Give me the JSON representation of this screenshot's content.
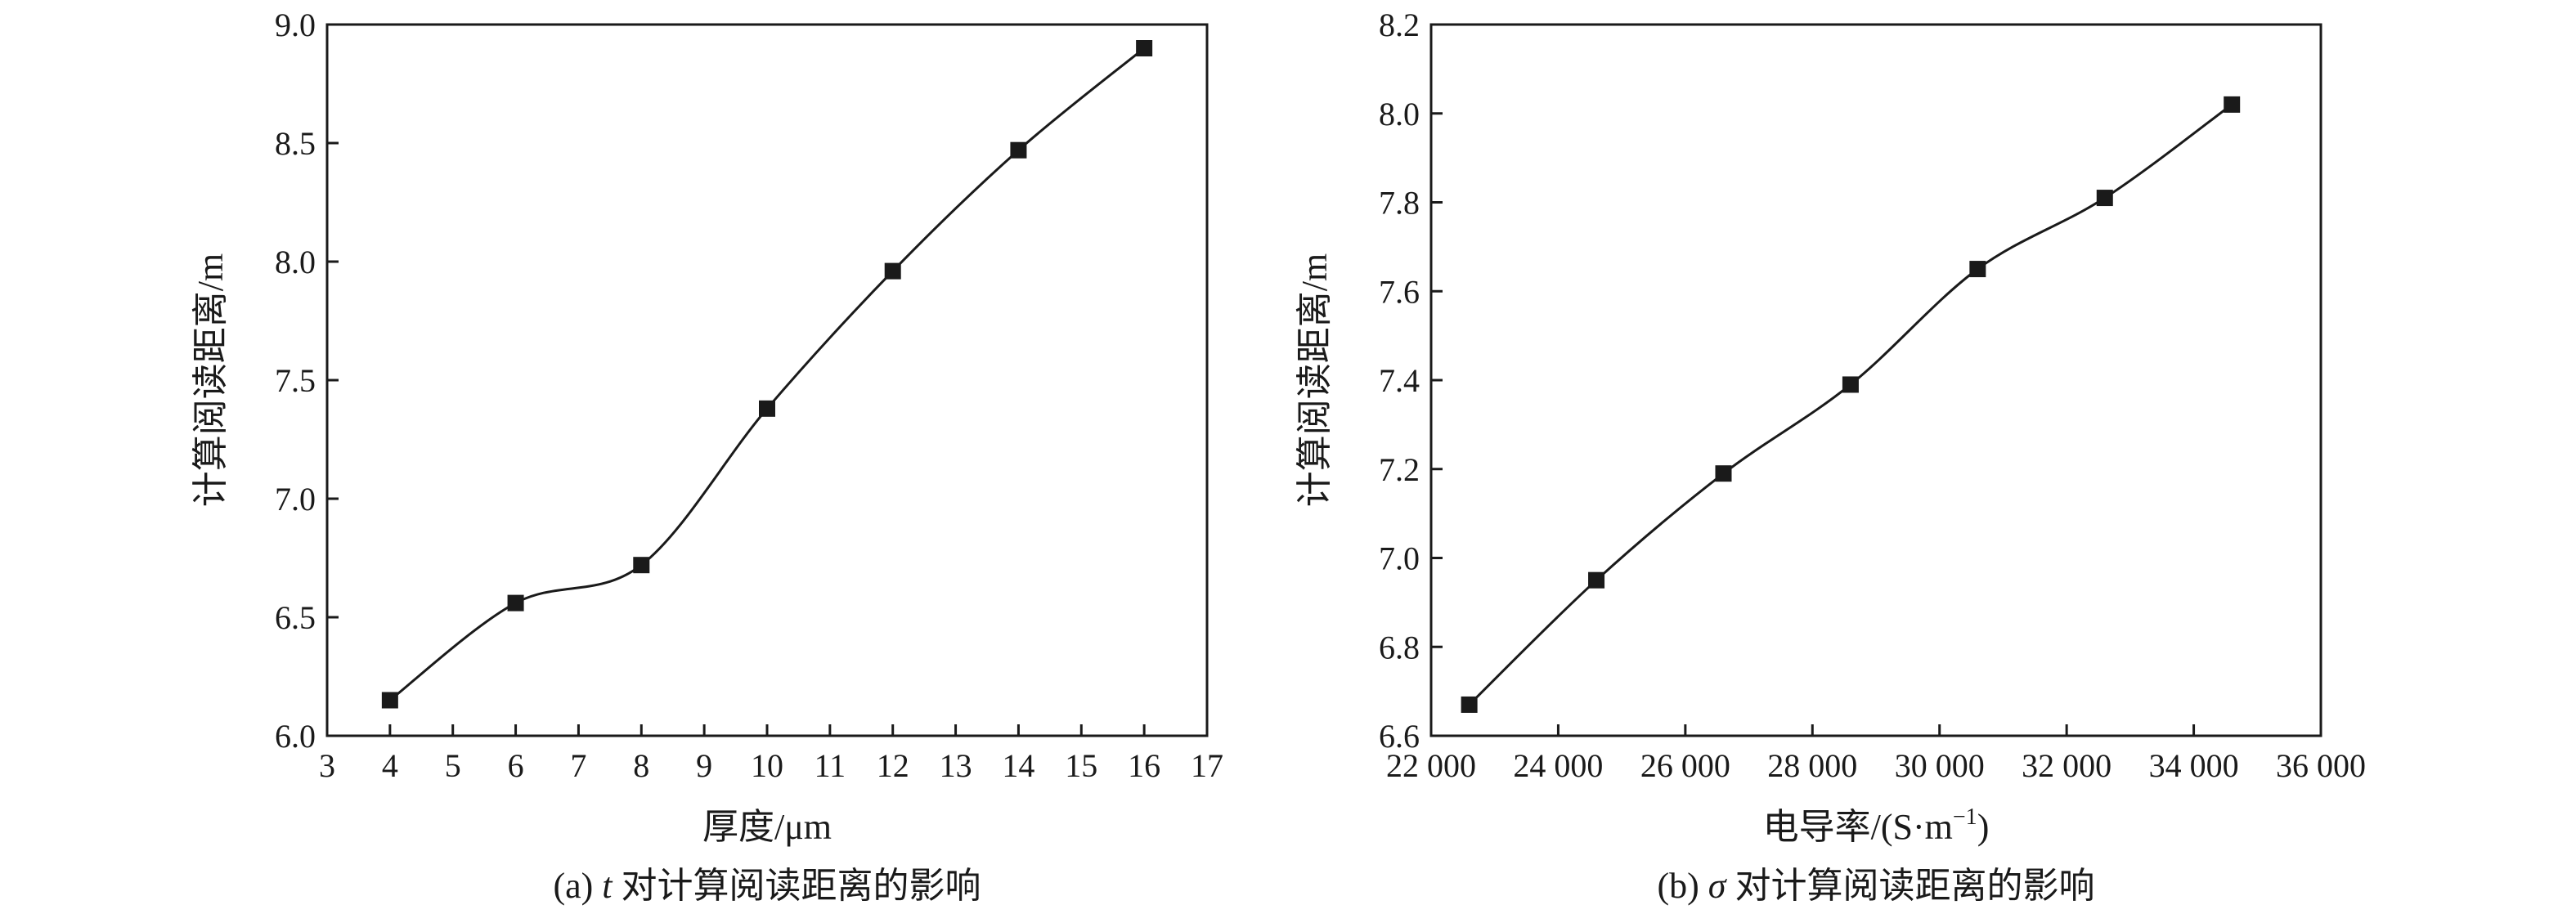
{
  "chart_data": [
    {
      "type": "line",
      "caption_prefix": "(a) ",
      "caption_symbol": "t",
      "caption_suffix": " 对计算阅读距离的影响",
      "xlabel": "厚度/μm",
      "ylabel": "计算阅读距离/m",
      "xlim": [
        3,
        17
      ],
      "ylim": [
        6.0,
        9.0
      ],
      "xticks": [
        3,
        4,
        5,
        6,
        7,
        8,
        9,
        10,
        11,
        12,
        13,
        14,
        15,
        16,
        17
      ],
      "xtick_labels": [
        "3",
        "4",
        "5",
        "6",
        "7",
        "8",
        "9",
        "10",
        "11",
        "12",
        "13",
        "14",
        "15",
        "16",
        "17"
      ],
      "yticks": [
        6.0,
        6.5,
        7.0,
        7.5,
        8.0,
        8.5,
        9.0
      ],
      "ytick_labels": [
        "6.0",
        "6.5",
        "7.0",
        "7.5",
        "8.0",
        "8.5",
        "9.0"
      ],
      "grid": false,
      "marker": "square",
      "x": [
        4,
        6,
        8,
        10,
        12,
        14,
        16
      ],
      "y": [
        6.15,
        6.56,
        6.72,
        7.38,
        7.96,
        8.47,
        8.9
      ]
    },
    {
      "type": "line",
      "caption_prefix": "(b) ",
      "caption_symbol": "σ",
      "caption_suffix": " 对计算阅读距离的影响",
      "xlabel_main": "电导率/(S·m",
      "xlabel_sup": "−1",
      "xlabel_end": ")",
      "ylabel": "计算阅读距离/m",
      "xlim": [
        22000,
        36000
      ],
      "ylim": [
        6.6,
        8.2
      ],
      "xticks": [
        22000,
        24000,
        26000,
        28000,
        30000,
        32000,
        34000,
        36000
      ],
      "xtick_labels": [
        "22 000",
        "24 000",
        "26 000",
        "28 000",
        "30 000",
        "32 000",
        "34 000",
        "36 000"
      ],
      "yticks": [
        6.6,
        6.8,
        7.0,
        7.2,
        7.4,
        7.6,
        7.8,
        8.0,
        8.2
      ],
      "ytick_labels": [
        "6.6",
        "6.8",
        "7.0",
        "7.2",
        "7.4",
        "7.6",
        "7.8",
        "8.0",
        "8.2"
      ],
      "grid": false,
      "marker": "square",
      "x": [
        22600,
        24600,
        26600,
        28600,
        30600,
        32600,
        34600
      ],
      "y": [
        6.67,
        6.95,
        7.19,
        7.39,
        7.65,
        7.81,
        8.02
      ]
    }
  ]
}
